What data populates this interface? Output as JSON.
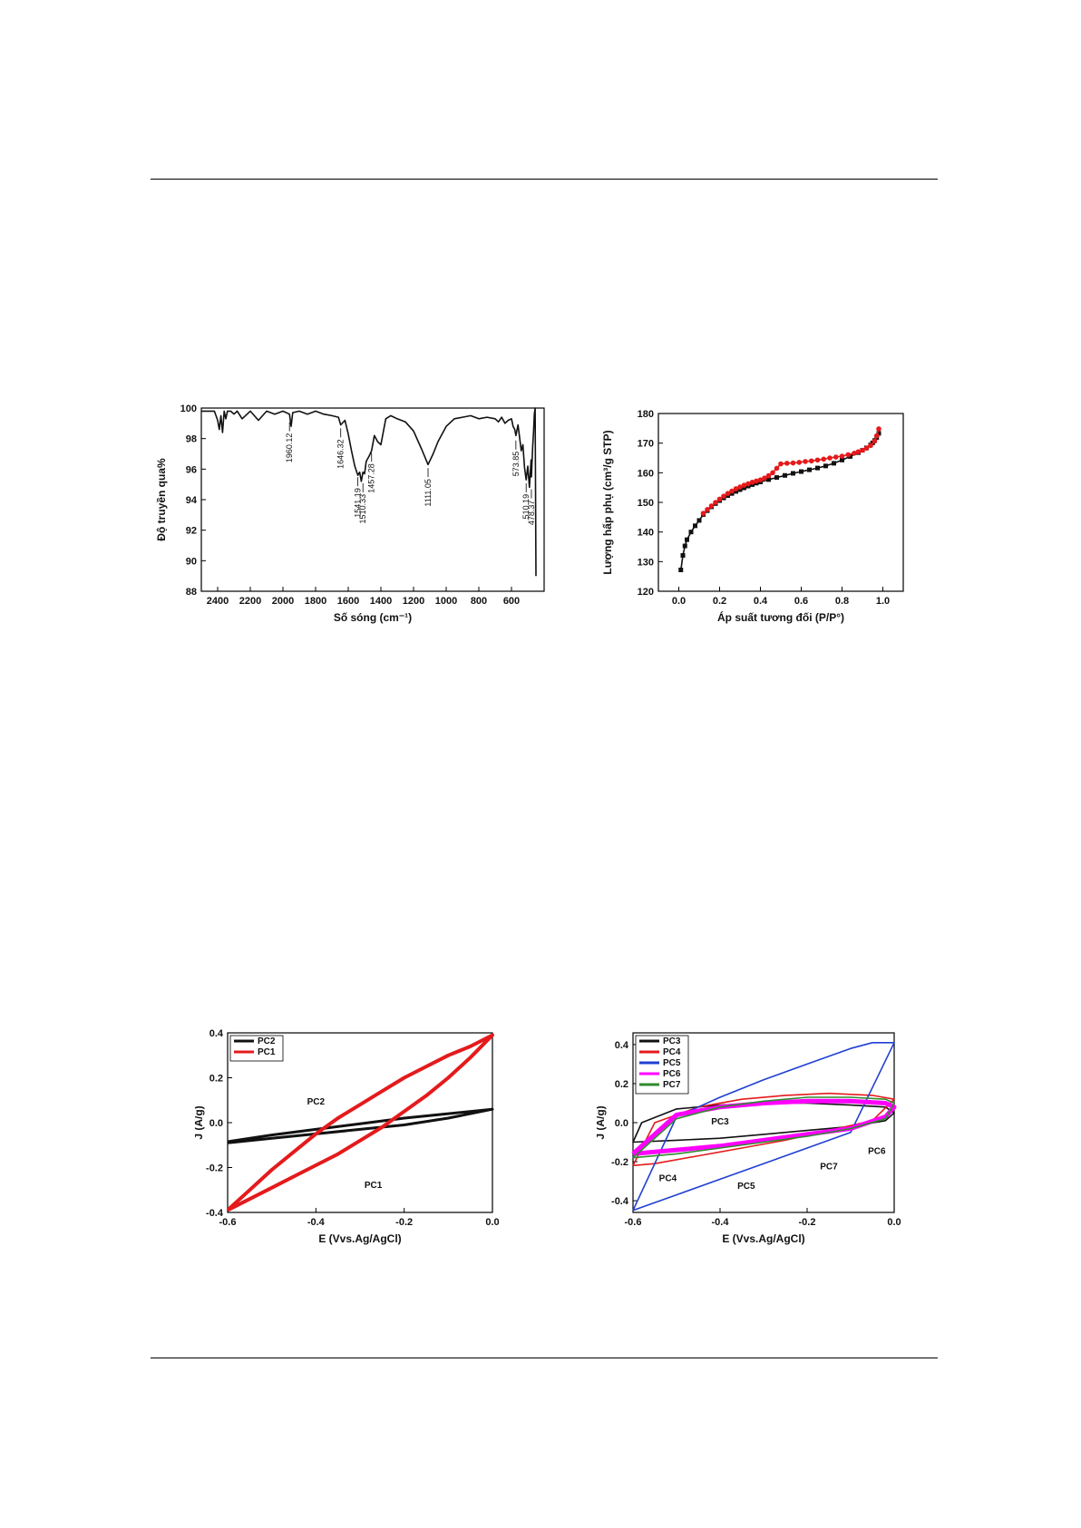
{
  "chart_data": [
    {
      "type": "line",
      "xlabel": "Số sóng (cm⁻¹)",
      "ylabel": "Độ truyền qua%",
      "xlim": [
        2500,
        400
      ],
      "ylim": [
        88,
        100
      ],
      "x_ticks": [
        "2400",
        "2200",
        "2000",
        "1800",
        "1600",
        "1400",
        "1200",
        "1000",
        "800",
        "600"
      ],
      "y_ticks": [
        "88",
        "90",
        "92",
        "94",
        "96",
        "98",
        "100"
      ],
      "series": [
        {
          "x": [
            2500,
            2420,
            2400,
            2390,
            2380,
            2370,
            2360,
            2350,
            2340,
            2320,
            2300,
            2280,
            2250,
            2200,
            2150,
            2100,
            2050,
            2000,
            1960,
            1950,
            1940,
            1900,
            1850,
            1800,
            1750,
            1700,
            1660,
            1646,
            1620,
            1600,
            1580,
            1560,
            1541,
            1530,
            1520,
            1510,
            1500,
            1490,
            1470,
            1457,
            1440,
            1420,
            1400,
            1370,
            1340,
            1300,
            1250,
            1200,
            1150,
            1111,
            1080,
            1050,
            1000,
            950,
            900,
            850,
            800,
            750,
            700,
            680,
            660,
            640,
            620,
            600,
            590,
            580,
            573,
            560,
            540,
            530,
            520,
            510,
            500,
            490,
            480,
            478,
            470,
            465,
            460,
            455,
            450
          ],
          "y": [
            99.8,
            99.8,
            99.2,
            98.6,
            99.5,
            98.4,
            99.8,
            99.3,
            99.8,
            99.8,
            99.6,
            99.8,
            99.3,
            99.8,
            99.2,
            99.8,
            99.6,
            99.8,
            99.6,
            98.8,
            99.7,
            99.8,
            99.6,
            99.8,
            99.6,
            99.5,
            99.4,
            98.9,
            99.2,
            98.3,
            97.2,
            96.2,
            95.6,
            95.8,
            95.2,
            95.8,
            95.7,
            96.5,
            96.9,
            97.2,
            98.2,
            97.8,
            97.6,
            99.3,
            99.5,
            99.3,
            99.1,
            98.5,
            97.3,
            96.3,
            97.0,
            97.8,
            98.8,
            99.3,
            99.4,
            99.5,
            99.3,
            99.4,
            99.3,
            99.1,
            99.4,
            99.0,
            99.2,
            99.3,
            98.8,
            98.6,
            98.2,
            98.9,
            97.2,
            97.6,
            96.1,
            95.3,
            96.2,
            94.8,
            96.6,
            95.5,
            97.5,
            98.4,
            99.6,
            100,
            89.0
          ]
        }
      ],
      "annotations": [
        {
          "text": "1960.12",
          "x": 1960,
          "y": 98.6
        },
        {
          "text": "1646.32",
          "x": 1646,
          "y": 98.2
        },
        {
          "text": "1541.19",
          "x": 1541,
          "y": 95.0
        },
        {
          "text": "1510.33",
          "x": 1510,
          "y": 94.6
        },
        {
          "text": "1457.28",
          "x": 1457,
          "y": 96.6
        },
        {
          "text": "1111.05",
          "x": 1111,
          "y": 95.6
        },
        {
          "text": "573.85",
          "x": 573,
          "y": 97.4
        },
        {
          "text": "510.19",
          "x": 510,
          "y": 94.6
        },
        {
          "text": "478.37",
          "x": 478,
          "y": 94.2
        }
      ]
    },
    {
      "type": "line",
      "xlabel": "Áp suất tương đối (P/P°)",
      "ylabel": "Lượng hấp phụ (cm³/g STP)",
      "xlim": [
        -0.1,
        1.1
      ],
      "ylim": [
        120,
        180
      ],
      "x_ticks": [
        "0.0",
        "0.2",
        "0.4",
        "0.6",
        "0.8",
        "1.0"
      ],
      "y_ticks": [
        "120",
        "130",
        "140",
        "150",
        "160",
        "170",
        "180"
      ],
      "series": [
        {
          "color": "#111111",
          "marker": "square",
          "x": [
            0.01,
            0.02,
            0.03,
            0.04,
            0.06,
            0.08,
            0.1,
            0.12,
            0.14,
            0.16,
            0.18,
            0.2,
            0.22,
            0.24,
            0.26,
            0.28,
            0.3,
            0.32,
            0.34,
            0.36,
            0.38,
            0.4,
            0.44,
            0.48,
            0.52,
            0.56,
            0.6,
            0.64,
            0.68,
            0.72,
            0.76,
            0.8,
            0.84,
            0.88,
            0.9,
            0.92,
            0.94,
            0.95,
            0.96,
            0.97,
            0.98
          ],
          "y": [
            127.2,
            132.1,
            135.3,
            137.4,
            140.0,
            142.1,
            143.9,
            145.9,
            147.2,
            148.5,
            149.6,
            150.6,
            151.5,
            152.3,
            153.0,
            153.7,
            154.3,
            154.9,
            155.5,
            156.0,
            156.5,
            156.9,
            157.7,
            158.4,
            159.1,
            159.8,
            160.4,
            161.0,
            161.6,
            162.3,
            163.2,
            164.3,
            165.5,
            166.8,
            167.6,
            168.4,
            169.4,
            170.1,
            170.9,
            171.9,
            173.3
          ]
        },
        {
          "color": "#e41a1c",
          "marker": "circle",
          "x": [
            0.98,
            0.97,
            0.96,
            0.94,
            0.92,
            0.9,
            0.88,
            0.86,
            0.83,
            0.8,
            0.77,
            0.74,
            0.71,
            0.68,
            0.65,
            0.62,
            0.59,
            0.56,
            0.53,
            0.5,
            0.48,
            0.46,
            0.44,
            0.42,
            0.4,
            0.38,
            0.36,
            0.34,
            0.32,
            0.3,
            0.28,
            0.26,
            0.24,
            0.22,
            0.2,
            0.18,
            0.16,
            0.14,
            0.12
          ],
          "y": [
            174.8,
            172.5,
            170.7,
            169.2,
            168.3,
            167.6,
            167.1,
            166.6,
            166.1,
            165.6,
            165.3,
            165.0,
            164.6,
            164.3,
            164.0,
            163.8,
            163.5,
            163.3,
            163.2,
            163.0,
            161.5,
            160.0,
            159.0,
            158.2,
            157.6,
            157.2,
            156.8,
            156.3,
            155.8,
            155.2,
            154.6,
            153.8,
            153.0,
            152.1,
            151.1,
            150.0,
            148.8,
            147.6,
            146.3
          ]
        }
      ]
    },
    {
      "type": "line",
      "xlabel": "E (Vvs.Ag/AgCl)",
      "ylabel": "J (A/g)",
      "xlim": [
        -0.6,
        0.0
      ],
      "ylim": [
        -0.4,
        0.4
      ],
      "x_ticks": [
        "-0.6",
        "-0.4",
        "-0.2",
        "0.0"
      ],
      "y_ticks": [
        "-0.4",
        "-0.2",
        "0.0",
        "0.2",
        "0.4"
      ],
      "legend_position": "top-left",
      "series": [
        {
          "name": "PC2",
          "color": "#111111",
          "x": [
            -0.6,
            -0.5,
            -0.4,
            -0.3,
            -0.2,
            -0.1,
            0.0,
            -0.1,
            -0.2,
            -0.3,
            -0.4,
            -0.5,
            -0.6
          ],
          "y": [
            -0.09,
            -0.07,
            -0.05,
            -0.03,
            -0.01,
            0.02,
            0.06,
            0.04,
            0.02,
            -0.005,
            -0.03,
            -0.055,
            -0.085
          ]
        },
        {
          "name": "PC1",
          "color": "#e41a1c",
          "x": [
            -0.6,
            -0.55,
            -0.5,
            -0.45,
            -0.4,
            -0.35,
            -0.3,
            -0.25,
            -0.2,
            -0.15,
            -0.1,
            -0.05,
            0.0,
            -0.05,
            -0.1,
            -0.15,
            -0.2,
            -0.25,
            -0.3,
            -0.35,
            -0.4,
            -0.45,
            -0.5,
            -0.55,
            -0.6
          ],
          "y": [
            -0.39,
            -0.3,
            -0.21,
            -0.13,
            -0.05,
            0.02,
            0.08,
            0.14,
            0.2,
            0.25,
            0.3,
            0.34,
            0.39,
            0.29,
            0.2,
            0.12,
            0.05,
            -0.02,
            -0.08,
            -0.14,
            -0.19,
            -0.24,
            -0.29,
            -0.34,
            -0.39
          ]
        }
      ],
      "annotations": [
        {
          "text": "PC2",
          "x": -0.4,
          "y": 0.08
        },
        {
          "text": "PC1",
          "x": -0.27,
          "y": -0.29
        }
      ]
    },
    {
      "type": "line",
      "xlabel": "E (Vvs.Ag/AgCl)",
      "ylabel": "J (A/g)",
      "xlim": [
        -0.6,
        0.0
      ],
      "ylim": [
        -0.46,
        0.46
      ],
      "x_ticks": [
        "-0.6",
        "-0.4",
        "-0.2",
        "0.0"
      ],
      "y_ticks": [
        "-0.4",
        "-0.2",
        "0.0",
        "0.2",
        "0.4"
      ],
      "legend_position": "top-left",
      "series": [
        {
          "name": "PC3",
          "color": "#111111",
          "x": [
            -0.6,
            -0.5,
            -0.4,
            -0.3,
            -0.2,
            -0.1,
            -0.02,
            0.0,
            -0.02,
            -0.1,
            -0.2,
            -0.3,
            -0.4,
            -0.5,
            -0.58,
            -0.6
          ],
          "y": [
            -0.1,
            -0.09,
            -0.08,
            -0.06,
            -0.04,
            -0.02,
            0.01,
            0.05,
            0.08,
            0.09,
            0.1,
            0.1,
            0.09,
            0.07,
            0.0,
            -0.1
          ]
        },
        {
          "name": "PC4",
          "color": "#e41a1c",
          "x": [
            -0.6,
            -0.55,
            -0.45,
            -0.35,
            -0.25,
            -0.15,
            -0.05,
            0.0,
            -0.05,
            -0.15,
            -0.25,
            -0.35,
            -0.45,
            -0.55,
            -0.6
          ],
          "y": [
            -0.22,
            -0.21,
            -0.17,
            -0.13,
            -0.09,
            -0.04,
            0.01,
            0.12,
            0.14,
            0.15,
            0.14,
            0.12,
            0.08,
            0.0,
            -0.22
          ]
        },
        {
          "name": "PC5",
          "color": "#1f3fd1",
          "x": [
            -0.6,
            -0.5,
            -0.4,
            -0.3,
            -0.2,
            -0.1,
            0.0,
            -0.05,
            -0.1,
            -0.2,
            -0.3,
            -0.4,
            -0.5,
            -0.6
          ],
          "y": [
            -0.45,
            -0.37,
            -0.29,
            -0.21,
            -0.13,
            -0.05,
            0.41,
            0.41,
            0.38,
            0.3,
            0.22,
            0.13,
            0.03,
            -0.45
          ]
        },
        {
          "name": "PC6",
          "color": "#ff00ff",
          "x": [
            -0.6,
            -0.5,
            -0.4,
            -0.3,
            -0.2,
            -0.1,
            -0.02,
            0.0,
            -0.02,
            -0.1,
            -0.2,
            -0.3,
            -0.4,
            -0.5,
            -0.6
          ],
          "y": [
            -0.16,
            -0.14,
            -0.12,
            -0.09,
            -0.06,
            -0.03,
            0.03,
            0.08,
            0.1,
            0.11,
            0.11,
            0.1,
            0.08,
            0.04,
            -0.16
          ]
        },
        {
          "name": "PC7",
          "color": "#2e8b2e",
          "x": [
            -0.6,
            -0.5,
            -0.4,
            -0.3,
            -0.2,
            -0.1,
            -0.02,
            0.0,
            -0.02,
            -0.1,
            -0.2,
            -0.3,
            -0.4,
            -0.5,
            -0.6
          ],
          "y": [
            -0.18,
            -0.16,
            -0.13,
            -0.1,
            -0.07,
            -0.03,
            0.02,
            0.1,
            0.12,
            0.13,
            0.13,
            0.11,
            0.08,
            0.02,
            -0.18
          ]
        }
      ],
      "annotations": [
        {
          "text": "PC3",
          "x": -0.4,
          "y": -0.01
        },
        {
          "text": "PC4",
          "x": -0.52,
          "y": -0.3
        },
        {
          "text": "PC5",
          "x": -0.34,
          "y": -0.34
        },
        {
          "text": "PC7",
          "x": -0.15,
          "y": -0.24
        },
        {
          "text": "PC6",
          "x": -0.04,
          "y": -0.16
        }
      ]
    }
  ]
}
